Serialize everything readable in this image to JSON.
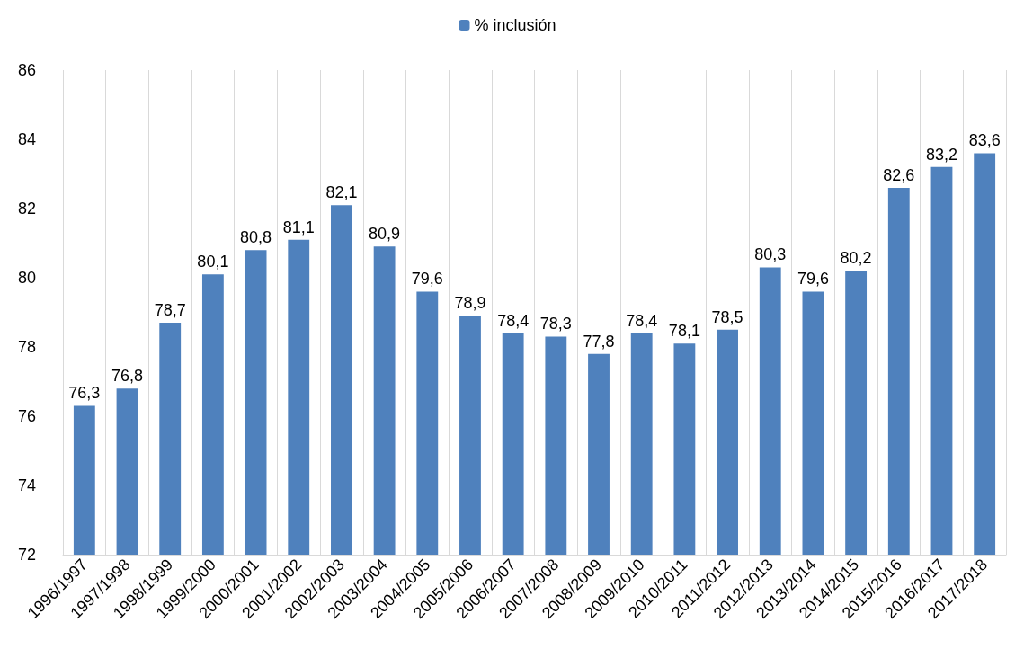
{
  "chart_data": {
    "type": "bar",
    "categories": [
      "1996/1997",
      "1997/1998",
      "1998/1999",
      "1999/2000",
      "2000/2001",
      "2001/2002",
      "2002/2003",
      "2003/2004",
      "2004/2005",
      "2005/2006",
      "2006/2007",
      "2007/2008",
      "2008/2009",
      "2009/2010",
      "2010/2011",
      "2011/2012",
      "2012/2013",
      "2013/2014",
      "2014/2015",
      "2015/2016",
      "2016/2017",
      "2017/2018"
    ],
    "series": [
      {
        "name": "% inclusión",
        "color": "#4f81bd",
        "values": [
          76.3,
          76.8,
          78.7,
          80.1,
          80.8,
          81.1,
          82.1,
          80.9,
          79.6,
          78.9,
          78.4,
          78.3,
          77.8,
          78.4,
          78.1,
          78.5,
          80.3,
          79.6,
          80.2,
          82.6,
          83.2,
          83.6
        ],
        "value_labels": [
          "76,3",
          "76,8",
          "78,7",
          "80,1",
          "80,8",
          "81,1",
          "82,1",
          "80,9",
          "79,6",
          "78,9",
          "78,4",
          "78,3",
          "77,8",
          "78,4",
          "78,1",
          "78,5",
          "80,3",
          "79,6",
          "80,2",
          "82,6",
          "83,2",
          "83,6"
        ]
      }
    ],
    "ylim": [
      72,
      86
    ],
    "yticks": [
      72,
      74,
      76,
      78,
      80,
      82,
      84,
      86
    ],
    "grid": "x",
    "legend": "top"
  }
}
